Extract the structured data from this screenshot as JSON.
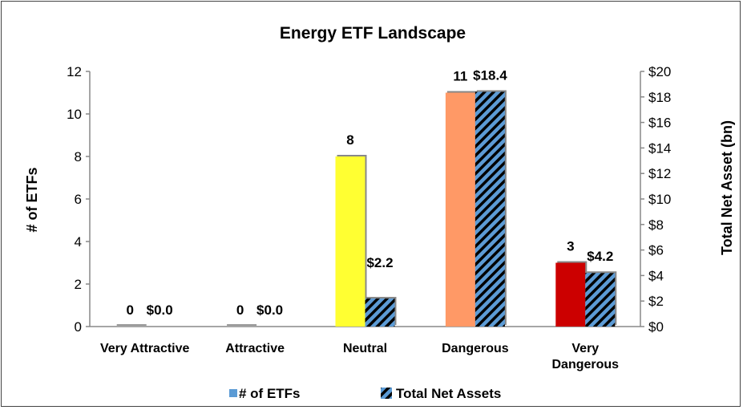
{
  "chart_data": {
    "type": "bar",
    "title": "Energy ETF Landscape",
    "categories": [
      "Very Attractive",
      "Attractive",
      "Neutral",
      "Dangerous",
      "Very Dangerous"
    ],
    "series": [
      {
        "name": "# of ETFs",
        "axis": "left",
        "values": [
          0,
          0,
          8,
          11,
          3
        ],
        "labels": [
          "0",
          "0",
          "8",
          "11",
          "3"
        ],
        "colors": [
          "#7a7a7a",
          "#7a7a7a",
          "#ffff33",
          "#ff9966",
          "#cc0000"
        ],
        "legend_color": "#5b9bd5"
      },
      {
        "name": "Total Net Assets",
        "axis": "right",
        "values": [
          0.0,
          0.0,
          2.2,
          18.4,
          4.2
        ],
        "labels": [
          "$0.0",
          "$0.0",
          "$2.2",
          "$18.4",
          "$4.2"
        ],
        "pattern": "diagonal-stripes",
        "colors": [
          "#5b9bd5",
          "#000000"
        ]
      }
    ],
    "ylabel_left": "# of ETFs",
    "ylabel_right": "Total Net Asset (bn)",
    "ylim_left": [
      0,
      12
    ],
    "yticks_left": [
      "0",
      "2",
      "4",
      "6",
      "8",
      "10",
      "12"
    ],
    "ylim_right": [
      0,
      20
    ],
    "yticks_right": [
      "$0",
      "$2",
      "$4",
      "$6",
      "$8",
      "$10",
      "$12",
      "$14",
      "$16",
      "$18",
      "$20"
    ],
    "grid": false,
    "legend_position": "bottom"
  }
}
